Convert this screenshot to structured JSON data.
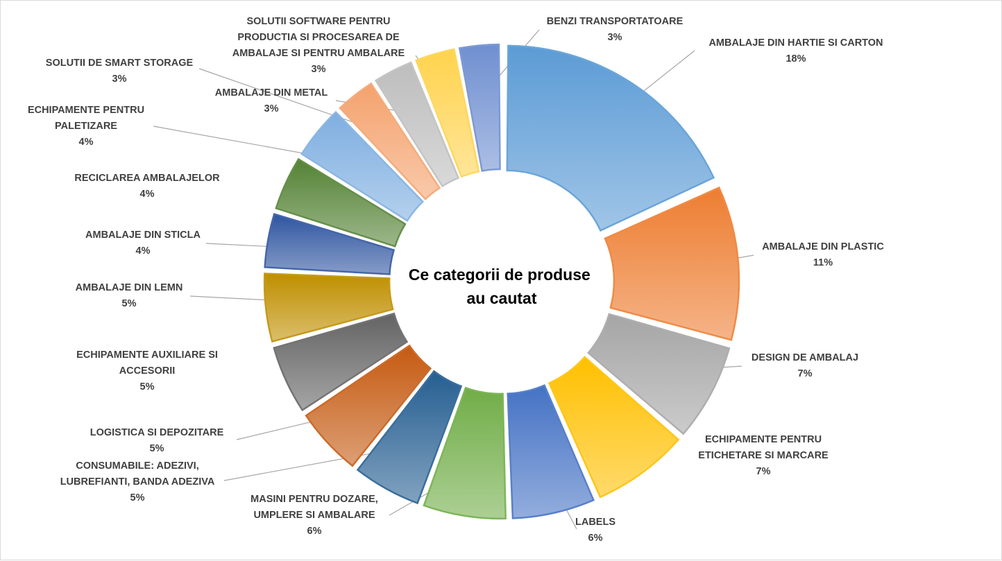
{
  "chart_data": {
    "type": "pie",
    "title": "Ce categorii de produse au cautat",
    "title_lines": [
      "Ce categorii de produse",
      "au cautat"
    ],
    "style": "exploded doughnut with gradient segments and leader-line labels",
    "slices": [
      {
        "label": "AMBALAJE DIN HARTIE SI CARTON",
        "label_lines": [
          "AMBALAJE DIN HARTIE SI CARTON"
        ],
        "value": 18,
        "pct_text": "18%",
        "color": "#5b9bd5"
      },
      {
        "label": "AMBALAJE DIN PLASTIC",
        "label_lines": [
          "AMBALAJE DIN PLASTIC"
        ],
        "value": 11,
        "pct_text": "11%",
        "color": "#ed7d31"
      },
      {
        "label": "DESIGN DE AMBALAJ",
        "label_lines": [
          "DESIGN DE AMBALAJ"
        ],
        "value": 7,
        "pct_text": "7%",
        "color": "#a5a5a5"
      },
      {
        "label": "ECHIPAMENTE PENTRU ETICHETARE SI MARCARE",
        "label_lines": [
          "ECHIPAMENTE PENTRU",
          "ETICHETARE SI MARCARE"
        ],
        "value": 7,
        "pct_text": "7%",
        "color": "#ffc000"
      },
      {
        "label": "LABELS",
        "label_lines": [
          "LABELS"
        ],
        "value": 6,
        "pct_text": "6%",
        "color": "#4472c4"
      },
      {
        "label": "MASINI PENTRU DOZARE, UMPLERE SI AMBALARE",
        "label_lines": [
          "MASINI PENTRU DOZARE,",
          "UMPLERE SI AMBALARE"
        ],
        "value": 6,
        "pct_text": "6%",
        "color": "#70ad47"
      },
      {
        "label": "CONSUMABILE: ADEZIVI, LUBREFIANTI, BANDA ADEZIVA",
        "label_lines": [
          "CONSUMABILE: ADEZIVI,",
          "LUBREFIANTI, BANDA ADEZIVA"
        ],
        "value": 5,
        "pct_text": "5%",
        "color": "#255e91"
      },
      {
        "label": "LOGISTICA SI DEPOZITARE",
        "label_lines": [
          "LOGISTICA SI DEPOZITARE"
        ],
        "value": 5,
        "pct_text": "5%",
        "color": "#c55a11"
      },
      {
        "label": "ECHIPAMENTE AUXILIARE SI ACCESORII",
        "label_lines": [
          "ECHIPAMENTE AUXILIARE SI",
          "ACCESORII"
        ],
        "value": 5,
        "pct_text": "5%",
        "color": "#636363"
      },
      {
        "label": "AMBALAJE DIN LEMN",
        "label_lines": [
          "AMBALAJE DIN LEMN"
        ],
        "value": 5,
        "pct_text": "5%",
        "color": "#bf8f00"
      },
      {
        "label": "AMBALAJE DIN STICLA",
        "label_lines": [
          "AMBALAJE DIN STICLA"
        ],
        "value": 4,
        "pct_text": "4%",
        "color": "#2f55a0"
      },
      {
        "label": "RECICLAREA AMBALAJELOR",
        "label_lines": [
          "RECICLAREA AMBALAJELOR"
        ],
        "value": 4,
        "pct_text": "4%",
        "color": "#548235"
      },
      {
        "label": "ECHIPAMENTE PENTRU PALETIZARE",
        "label_lines": [
          "ECHIPAMENTE PENTRU",
          "PALETIZARE"
        ],
        "value": 4,
        "pct_text": "4%",
        "color": "#7eaee0"
      },
      {
        "label": "SOLUTII DE SMART STORAGE",
        "label_lines": [
          "SOLUTII DE SMART STORAGE"
        ],
        "value": 3,
        "pct_text": "3%",
        "color": "#f4a26d"
      },
      {
        "label": "AMBALAJE DIN METAL",
        "label_lines": [
          "AMBALAJE DIN METAL"
        ],
        "value": 3,
        "pct_text": "3%",
        "color": "#bdbdbd"
      },
      {
        "label": "SOLUTII SOFTWARE PENTRU PRODUCTIA SI PROCESAREA DE AMBALAJE SI PENTRU AMBALARE",
        "label_lines": [
          "SOLUTII SOFTWARE PENTRU",
          "PRODUCTIA SI PROCESAREA DE",
          "AMBALAJE SI PENTRU AMBALARE"
        ],
        "value": 3,
        "pct_text": "3%",
        "color": "#ffd34d"
      },
      {
        "label": "BENZI TRANSPORTATOARE",
        "label_lines": [
          "BENZI TRANSPORTATOARE"
        ],
        "value": 3,
        "pct_text": "3%",
        "color": "#6f8fd0"
      }
    ],
    "legend": "none (data labels with leader lines)"
  }
}
